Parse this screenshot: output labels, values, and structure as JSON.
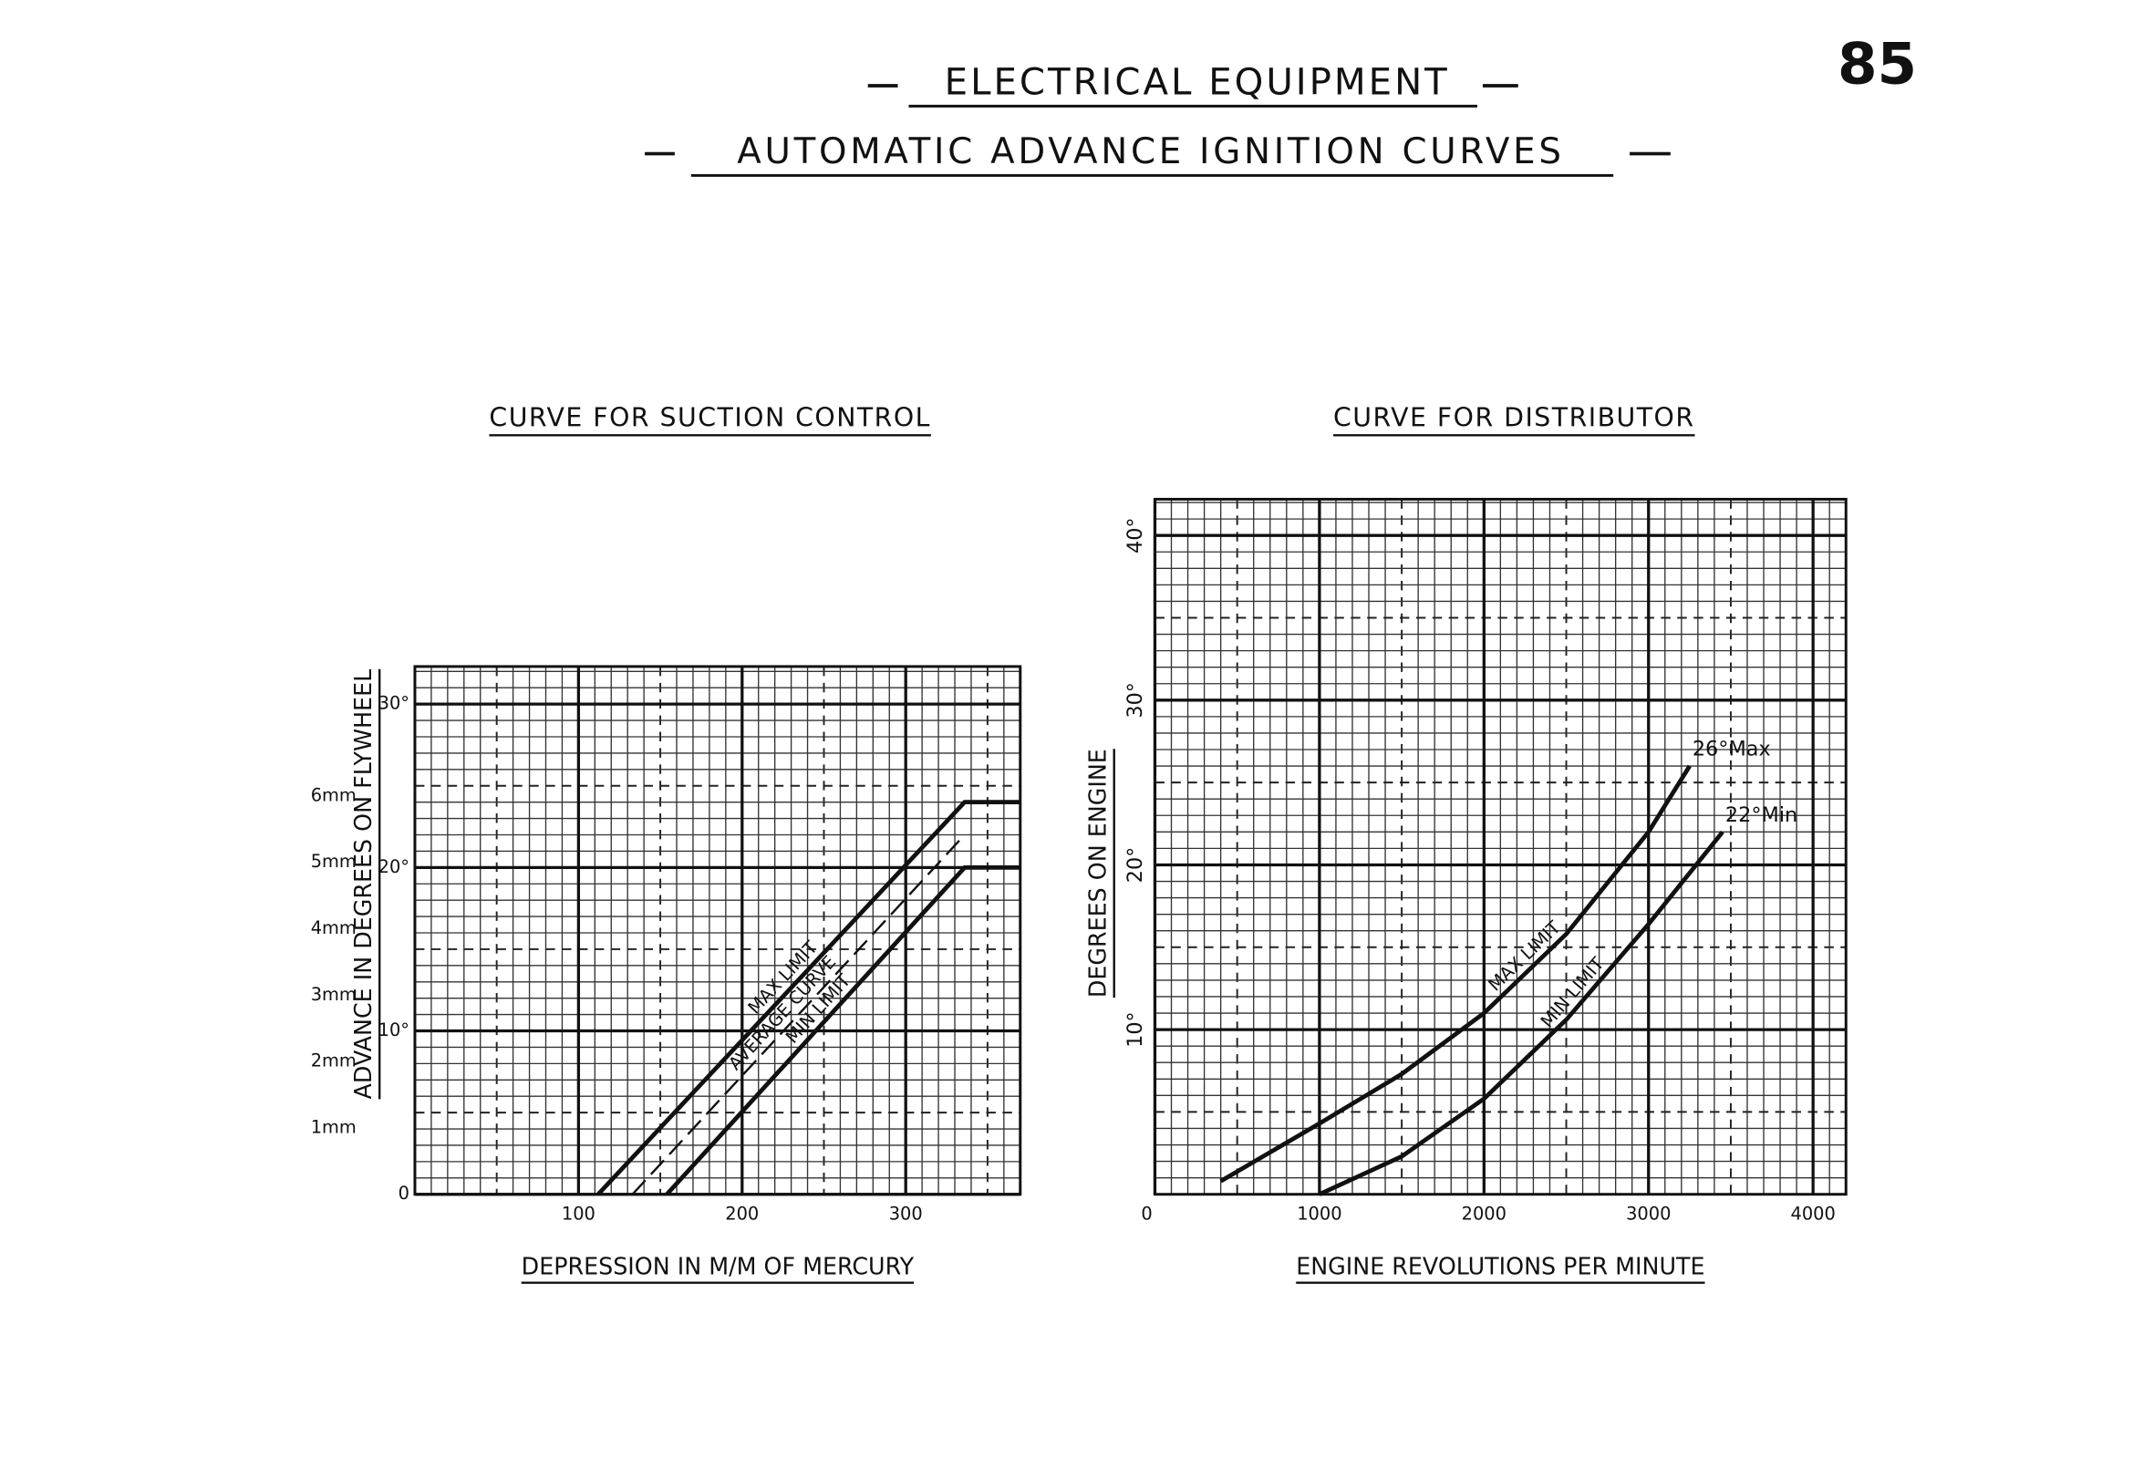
{
  "page_number": "85",
  "header": "ELECTRICAL EQUIPMENT",
  "title": "AUTOMATIC ADVANCE IGNITION CURVES",
  "chart_data": [
    {
      "type": "line",
      "title": "CURVE FOR SUCTION CONTROL",
      "x_label": "DEPRESSION IN M/M OF MERCURY",
      "y_label": "ADVANCE IN DEGREES ON FLYWHEEL",
      "xlim": [
        0,
        370
      ],
      "xticks": [
        100,
        200,
        300
      ],
      "ylim": [
        0,
        32.3
      ],
      "yticks": [
        0,
        {
          "value": 10,
          "label": "10°"
        },
        {
          "value": 20,
          "label": "20°"
        },
        {
          "value": 30,
          "label": "30°"
        }
      ],
      "y2lim": [
        0,
        7.95
      ],
      "y2ticks": [
        {
          "value": 1,
          "label": "1mm"
        },
        {
          "value": 2,
          "label": "2mm"
        },
        {
          "value": 3,
          "label": "3mm"
        },
        {
          "value": 4,
          "label": "4mm"
        },
        {
          "value": 5,
          "label": "5mm"
        },
        {
          "value": 6,
          "label": "6mm"
        }
      ],
      "grid": true,
      "series": [
        {
          "name": "MAX LIMIT",
          "color": "#111111",
          "style": "solid",
          "x": [
            112,
            336,
            370
          ],
          "values": [
            0,
            24,
            24
          ]
        },
        {
          "name": "AVERAGE CURVE",
          "color": "#111111",
          "style": "dashed",
          "x": [
            133,
            336
          ],
          "values": [
            0,
            22
          ]
        },
        {
          "name": "MIN LIMIT",
          "color": "#111111",
          "style": "solid",
          "x": [
            154,
            336,
            370
          ],
          "values": [
            0,
            20,
            20
          ]
        }
      ]
    },
    {
      "type": "line",
      "title": "CURVE FOR DISTRIBUTOR",
      "x_label": "ENGINE REVOLUTIONS PER MINUTE",
      "y_label": "DEGREES ON ENGINE",
      "xlim": [
        0,
        4200
      ],
      "xticks": [
        0,
        1000,
        2000,
        3000,
        4000
      ],
      "ylim": [
        0,
        42.2
      ],
      "yticks": [
        {
          "value": 10,
          "label": "10°"
        },
        {
          "value": 20,
          "label": "20°"
        },
        {
          "value": 30,
          "label": "30°"
        },
        {
          "value": 40,
          "label": "40°"
        }
      ],
      "grid": true,
      "series": [
        {
          "name": "MAX LIMIT",
          "color": "#111111",
          "style": "solid",
          "label": "26°Max",
          "x": [
            400,
            1000,
            1500,
            2000,
            2500,
            3000,
            3250
          ],
          "values": [
            0.8,
            4.3,
            7.3,
            11,
            15.8,
            22,
            26
          ]
        },
        {
          "name": "MIN LIMIT",
          "color": "#111111",
          "style": "solid",
          "label": "22°Min",
          "x": [
            1000,
            1500,
            2000,
            2500,
            3000,
            3450
          ],
          "values": [
            0,
            2.3,
            5.8,
            10.6,
            16.4,
            22
          ]
        }
      ]
    }
  ]
}
